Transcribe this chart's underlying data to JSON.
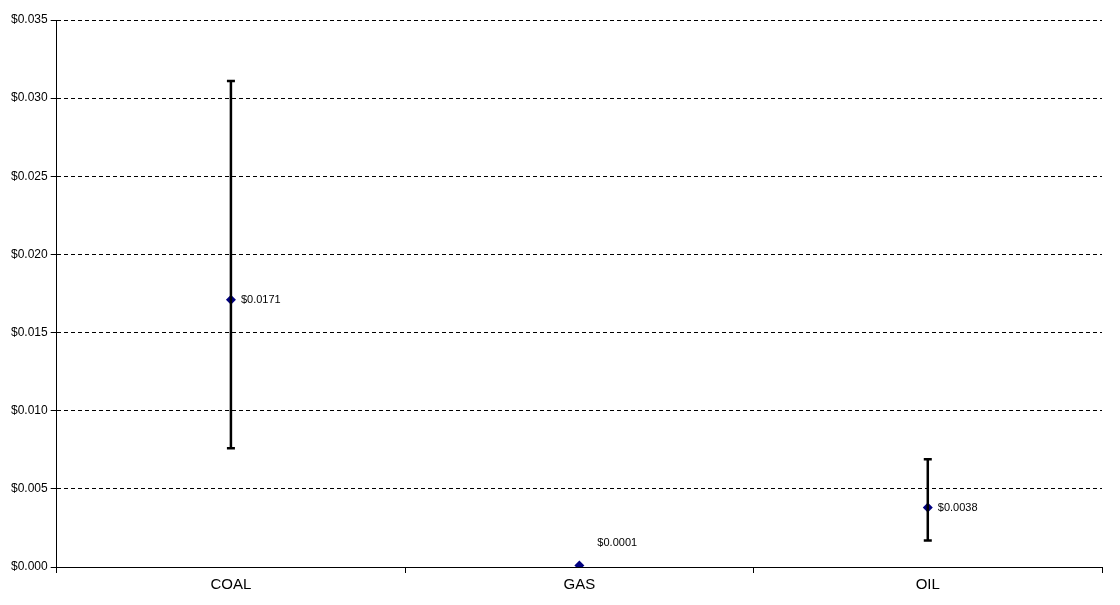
{
  "chart_data": {
    "type": "scatter",
    "categories": [
      "COAL",
      "GAS",
      "OIL"
    ],
    "values": [
      0.0171,
      0.0001,
      0.0038
    ],
    "errors": [
      [
        0.0076,
        0.0311
      ],
      null,
      [
        0.0017,
        0.0069
      ]
    ],
    "value_labels": [
      "$0.0171",
      "$0.0001",
      "$0.0038"
    ],
    "color": "#000080",
    "marker": "diamond",
    "grid": "y",
    "line_style": "dashed",
    "ylim": [
      0,
      0.035
    ],
    "yticks": [
      {
        "value": 0,
        "label": "$0.000"
      },
      {
        "value": 0.005,
        "label": "$0.005"
      },
      {
        "value": 0.01,
        "label": "$0.010"
      },
      {
        "value": 0.015,
        "label": "$0.015"
      },
      {
        "value": 0.02,
        "label": "$0.020"
      },
      {
        "value": 0.025,
        "label": "$0.025"
      },
      {
        "value": 0.03,
        "label": "$0.030"
      },
      {
        "value": 0.035,
        "label": "$0.035"
      }
    ]
  }
}
